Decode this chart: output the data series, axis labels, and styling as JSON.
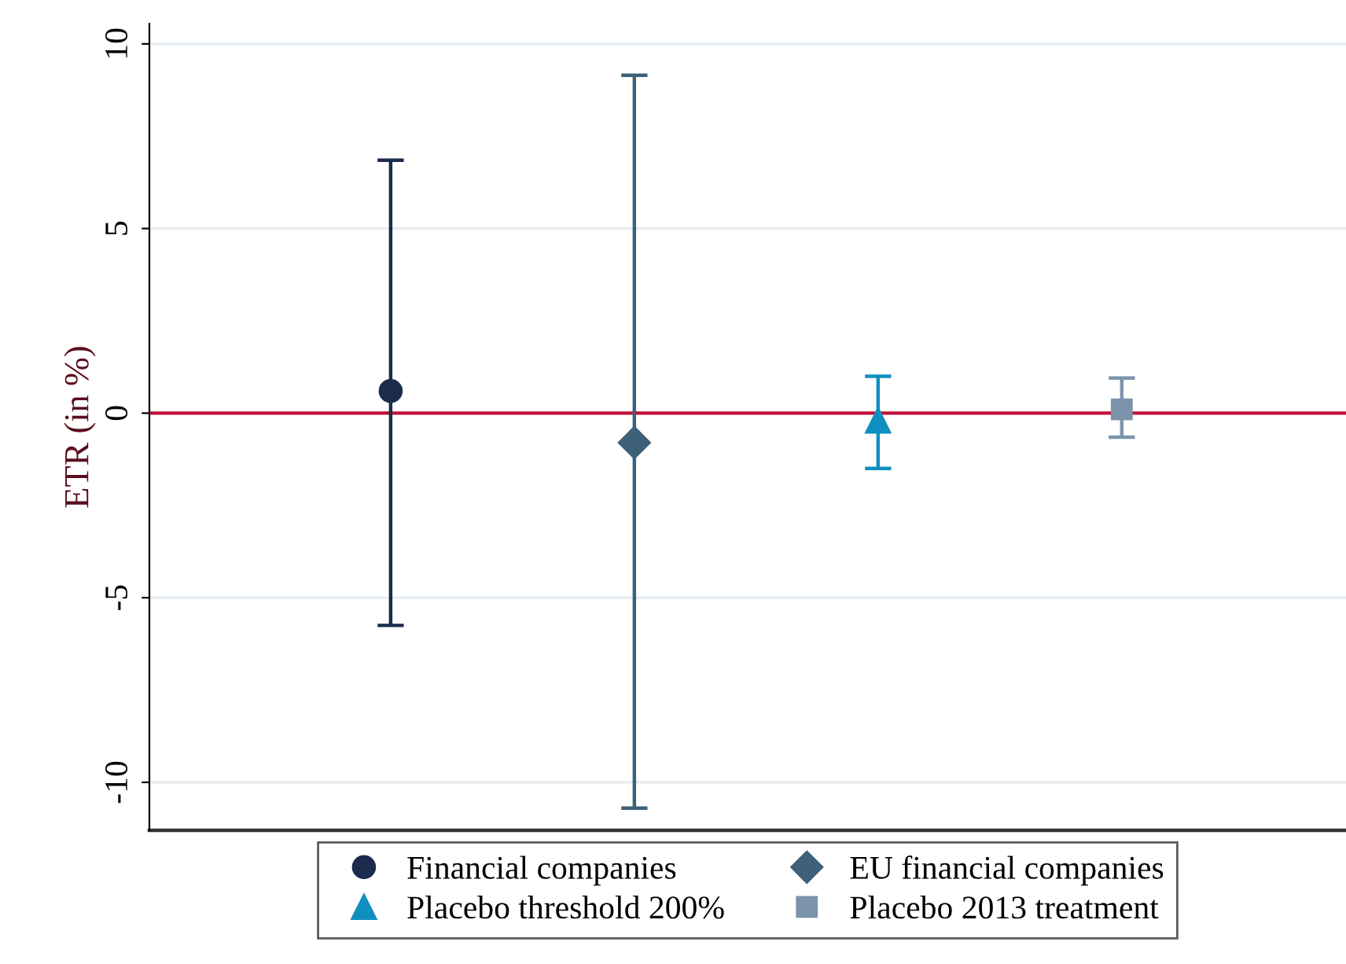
{
  "chart_data": {
    "type": "scatter",
    "ylabel": "ETR (in %)",
    "categories": [
      null,
      null,
      null,
      null
    ],
    "series": [
      {
        "name": "Financial companies",
        "color": "#1a2b4c",
        "marker": "circle",
        "values": [
          0.6,
          null,
          null,
          null
        ],
        "errors": [
          [
            -5.75,
            6.85
          ],
          null,
          null,
          null
        ]
      },
      {
        "name": "EU financial companies",
        "color": "#3e6078",
        "marker": "diamond",
        "values": [
          null,
          -0.8,
          null,
          null
        ],
        "errors": [
          null,
          [
            -10.7,
            9.15
          ],
          null,
          null
        ]
      },
      {
        "name": "Placebo threshold 200%",
        "color": "#0f8fbf",
        "marker": "triangle",
        "values": [
          null,
          null,
          -0.2,
          null
        ],
        "errors": [
          null,
          null,
          [
            -1.5,
            1.0
          ],
          null
        ]
      },
      {
        "name": "Placebo 2013 treatment",
        "color": "#7d93ab",
        "marker": "square",
        "values": [
          null,
          null,
          null,
          0.1
        ],
        "errors": [
          null,
          null,
          null,
          [
            -0.65,
            0.95
          ]
        ]
      }
    ],
    "ylim": [
      -11.3,
      10.55
    ],
    "yticks": [
      {
        "value": -10,
        "label": "-10"
      },
      {
        "value": -5,
        "label": "-5"
      },
      0,
      5,
      10
    ],
    "ref_lines": [
      {
        "axis": "y",
        "value": 0,
        "color": "#c0103a"
      }
    ],
    "grid": "y",
    "legend": "bottom",
    "tick_labels": "y"
  }
}
